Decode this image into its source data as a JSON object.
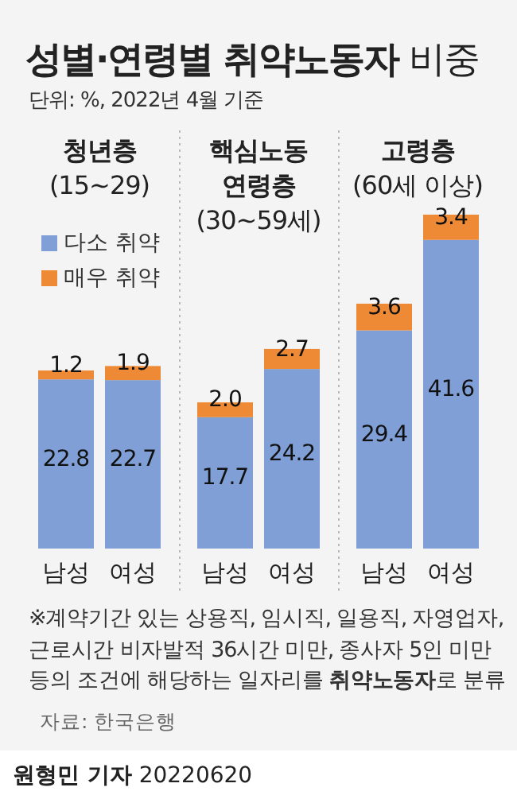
{
  "chart_data": {
    "type": "bar",
    "title": "**성별·연령별 취약노동자** 비중",
    "subtitle": "단위: %, 2022년 4월 기준",
    "categories": [
      "남성",
      "여성",
      "남성",
      "여성",
      "남성",
      "여성"
    ],
    "series": [
      {
        "name": "다소 취약",
        "color": "#7f9fd6",
        "values": [
          22.8,
          22.7,
          17.7,
          24.2,
          29.4,
          41.6
        ]
      },
      {
        "name": "매우 취약",
        "color": "#ee8a35",
        "values": [
          1.2,
          1.9,
          2.0,
          2.7,
          3.6,
          3.4
        ],
        "value_labels": [
          "1.2",
          "1.9",
          "2.0",
          "2.7",
          "3.6",
          "3.4"
        ]
      }
    ],
    "stacked": true,
    "data_labels": true,
    "legend": "top left",
    "annotations": [
      "**청년층** (15~29)",
      "**핵심노동 연령층** (30~59세)",
      "**고령층** (60세 이상)",
      "※계약기간 있는 상용직, 임시직, 일용직, 자영업자, 근로시간 비자발적 36시간 미만, 종사자 5인 미만 등의 조건에 해당하는 일자리를 **취약노동자**로 분류",
      "자료: 한국은행",
      "**원형민 기자** 20220620"
    ]
  }
}
